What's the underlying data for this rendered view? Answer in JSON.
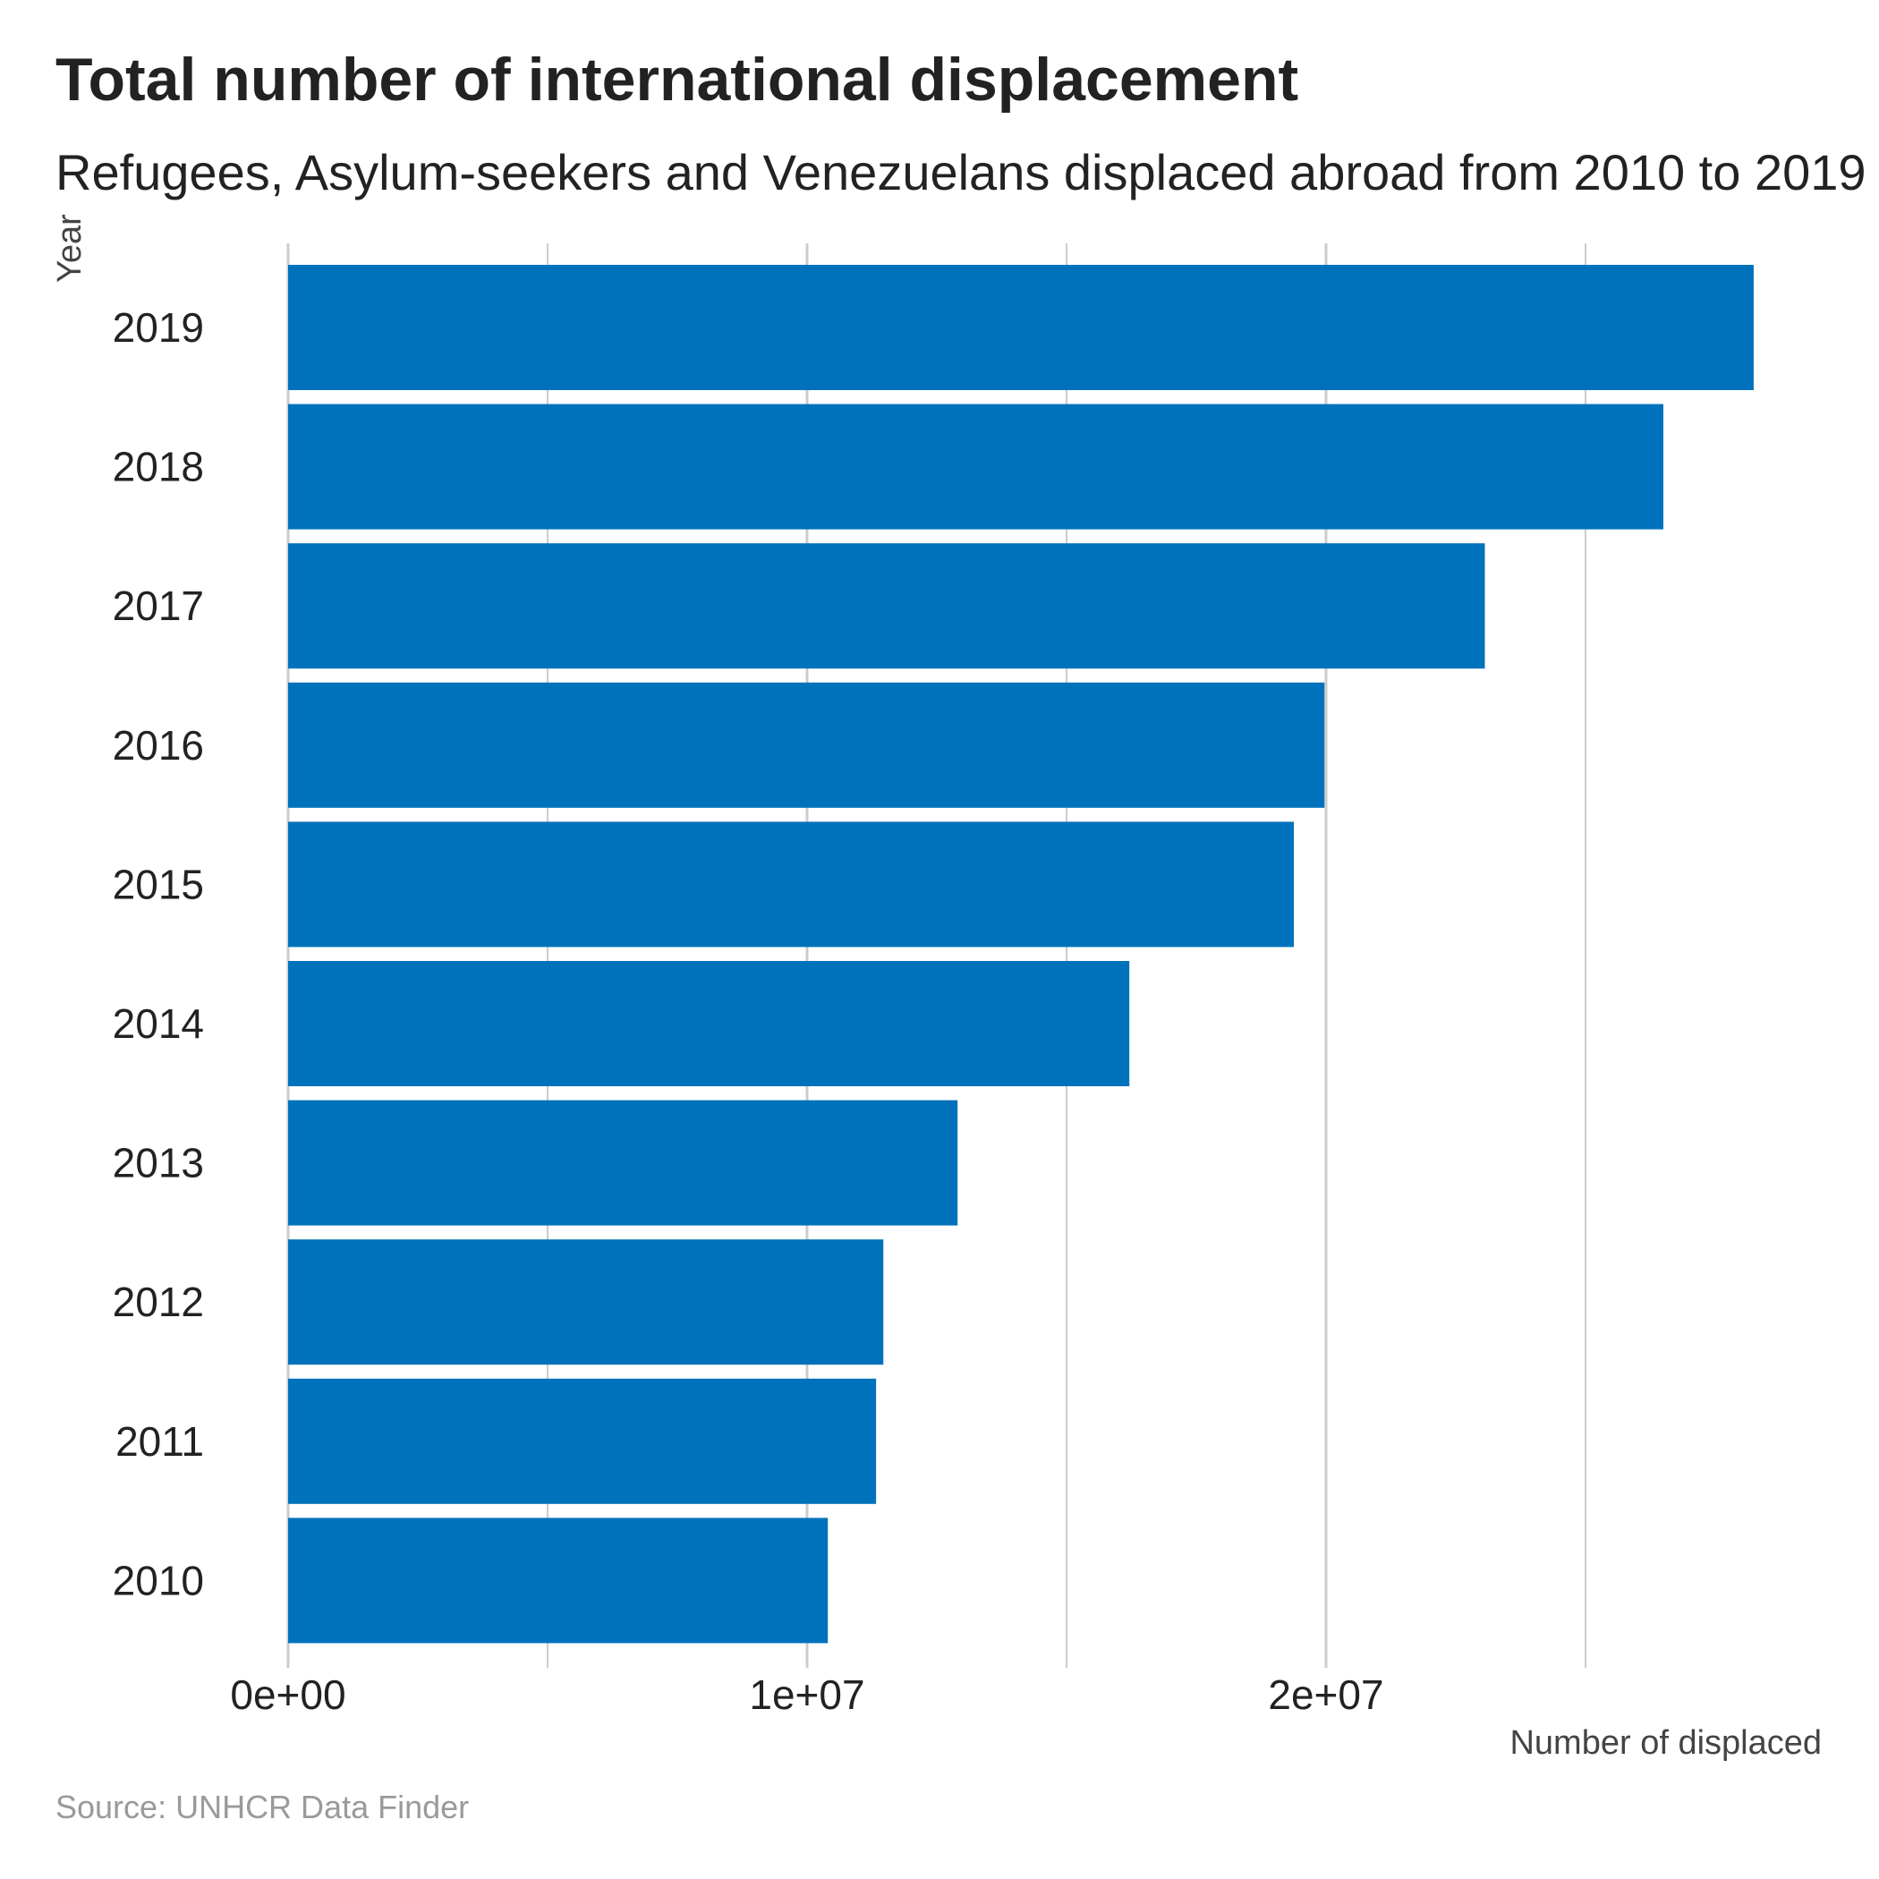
{
  "chart_data": {
    "type": "bar",
    "orientation": "horizontal",
    "title": "Total number of international displacement",
    "subtitle": "Refugees, Asylum-seekers and Venezuelans displaced abroad from 2010 to 2019",
    "xlabel": "Number of displaced",
    "ylabel": "Year",
    "caption": "Source: UNHCR Data Finder",
    "categories": [
      "2019",
      "2018",
      "2017",
      "2016",
      "2015",
      "2014",
      "2013",
      "2012",
      "2011",
      "2010"
    ],
    "values": [
      28240000,
      26500000,
      23060000,
      19970000,
      19380000,
      16210000,
      12900000,
      11470000,
      11330000,
      10400000
    ],
    "xlim": [
      0,
      30000000
    ],
    "xticks": [
      0,
      10000000,
      20000000
    ],
    "xtick_labels": [
      "0e+00",
      "1e+07",
      "2e+07"
    ],
    "minor_gridlines": [
      5000000,
      15000000,
      25000000
    ],
    "grid": true,
    "bar_color": "#0072bc",
    "grid_color": "#cccccc"
  }
}
